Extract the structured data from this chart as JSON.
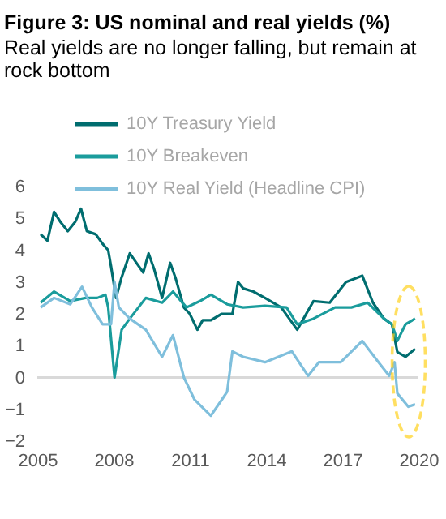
{
  "chart_data": {
    "type": "line",
    "title": "Figure 3: US nominal and real yields (%)",
    "subtitle": "Real yields are no longer falling, but remain at rock bottom",
    "xlim": [
      2005,
      2020
    ],
    "xticks": [
      2005,
      2008,
      2011,
      2014,
      2017,
      2020
    ],
    "ylim": [
      -2,
      6
    ],
    "yticks": [
      -2,
      -1,
      0,
      1,
      2,
      3,
      4,
      5,
      6
    ],
    "grid": false,
    "legend": "top",
    "line_style": "solid",
    "marker": "none",
    "ref_lines": [
      {
        "axis": "y",
        "value": 0,
        "color": "#d9d9d9"
      }
    ],
    "series": [
      {
        "name": "10Y Treasury Yield",
        "color": "#006d6f",
        "x": [
          2005.13,
          2005.4,
          2005.66,
          2005.9,
          2006.2,
          2006.5,
          2006.72,
          2006.95,
          2007.3,
          2007.57,
          2007.79,
          2007.9,
          2008.1,
          2008.3,
          2008.64,
          2008.9,
          2009.17,
          2009.38,
          2009.6,
          2009.91,
          2010.23,
          2010.45,
          2010.77,
          2011.0,
          2011.3,
          2011.51,
          2011.83,
          2012.26,
          2012.68,
          2012.9,
          2013.1,
          2013.5,
          2013.96,
          2014.6,
          2015.23,
          2015.87,
          2016.51,
          2017.15,
          2017.79,
          2018.21,
          2018.64,
          2018.96,
          2019.17,
          2019.49,
          2019.87
        ],
        "values": [
          4.5,
          4.3,
          5.2,
          4.9,
          4.6,
          4.9,
          5.3,
          4.6,
          4.5,
          4.2,
          4.0,
          3.5,
          2.5,
          3.1,
          3.9,
          3.6,
          3.3,
          3.9,
          3.4,
          2.5,
          3.6,
          3.1,
          2.2,
          2.0,
          1.5,
          1.8,
          1.8,
          2.0,
          2.0,
          3.0,
          2.8,
          2.7,
          2.5,
          2.2,
          1.5,
          2.4,
          2.35,
          3.0,
          3.2,
          2.35,
          1.85,
          1.67,
          0.8,
          0.65,
          0.9
        ]
      },
      {
        "name": "10Y Breakeven",
        "color": "#1a9c9c",
        "x": [
          2005.13,
          2005.66,
          2006.3,
          2006.9,
          2007.36,
          2007.68,
          2007.79,
          2008.04,
          2008.32,
          2008.64,
          2009.27,
          2009.91,
          2010.34,
          2010.87,
          2011.4,
          2011.83,
          2012.47,
          2013.1,
          2013.96,
          2014.81,
          2015.23,
          2015.87,
          2016.72,
          2017.36,
          2018.0,
          2018.64,
          2018.96,
          2019.17,
          2019.49,
          2019.87
        ],
        "values": [
          2.35,
          2.7,
          2.4,
          2.5,
          2.5,
          2.6,
          2.2,
          0.0,
          1.5,
          1.85,
          2.5,
          2.35,
          2.7,
          2.2,
          2.4,
          2.6,
          2.3,
          2.2,
          2.25,
          2.2,
          1.67,
          1.85,
          2.2,
          2.2,
          2.35,
          1.85,
          1.67,
          1.15,
          1.67,
          1.85
        ]
      },
      {
        "name": "10Y Real Yield (Headline CPI)",
        "color": "#7fbfdc",
        "x": [
          2005.13,
          2005.66,
          2006.3,
          2006.76,
          2007.15,
          2007.57,
          2007.9,
          2008.04,
          2008.21,
          2008.64,
          2009.27,
          2009.91,
          2010.34,
          2010.77,
          2011.19,
          2011.83,
          2012.26,
          2012.47,
          2012.68,
          2013.1,
          2013.96,
          2015.02,
          2015.66,
          2016.08,
          2016.94,
          2017.79,
          2018.43,
          2018.85,
          2019.06,
          2019.17,
          2019.6,
          2019.87
        ],
        "values": [
          2.2,
          2.5,
          2.3,
          2.85,
          2.2,
          1.67,
          1.67,
          3.0,
          2.2,
          1.85,
          1.5,
          0.65,
          1.33,
          0.0,
          -0.7,
          -1.2,
          -0.7,
          -0.45,
          0.82,
          0.65,
          0.48,
          0.82,
          0.05,
          0.48,
          0.48,
          1.15,
          0.48,
          0.05,
          0.48,
          -0.5,
          -0.92,
          -0.84
        ]
      }
    ]
  }
}
